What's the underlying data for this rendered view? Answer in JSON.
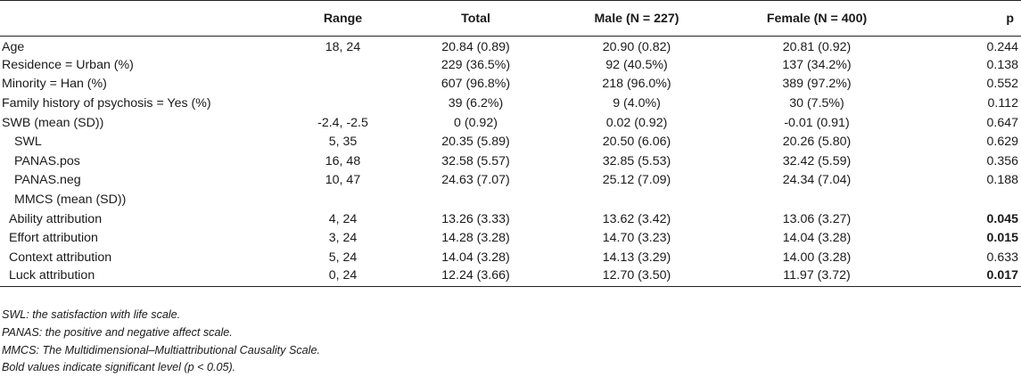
{
  "header": {
    "label": "",
    "range": "Range",
    "total": "Total",
    "male": "Male (N = 227)",
    "female": "Female (N = 400)",
    "p": "p"
  },
  "rows": [
    {
      "label": "Age",
      "range": "18, 24",
      "total": "20.84 (0.89)",
      "male": "20.90 (0.82)",
      "female": "20.81 (0.92)",
      "p": "0.244"
    },
    {
      "label": "Residence = Urban (%)",
      "range": "",
      "total": "229 (36.5%)",
      "male": "92 (40.5%)",
      "female": "137 (34.2%)",
      "p": "0.138"
    },
    {
      "label": "Minority = Han (%)",
      "range": "",
      "total": "607 (96.8%)",
      "male": "218 (96.0%)",
      "female": "389 (97.2%)",
      "p": "0.552"
    },
    {
      "label": "Family history of psychosis = Yes (%)",
      "range": "",
      "total": "39 (6.2%)",
      "male": "9 (4.0%)",
      "female": "30 (7.5%)",
      "p": "0.112"
    },
    {
      "label": "SWB (mean (SD))",
      "range": "-2.4, -2.5",
      "total": "0 (0.92)",
      "male": "0.02 (0.92)",
      "female": "-0.01 (0.91)",
      "p": "0.647"
    },
    {
      "label": "SWL",
      "range": "5, 35",
      "total": "20.35 (5.89)",
      "male": "20.50 (6.06)",
      "female": "20.26 (5.80)",
      "p": "0.629"
    },
    {
      "label": "PANAS.pos",
      "range": "16, 48",
      "total": "32.58 (5.57)",
      "male": "32.85 (5.53)",
      "female": "32.42 (5.59)",
      "p": "0.356"
    },
    {
      "label": "PANAS.neg",
      "range": "10, 47",
      "total": "24.63 (7.07)",
      "male": "25.12 (7.09)",
      "female": "24.34 (7.04)",
      "p": "0.188"
    },
    {
      "label": "MMCS (mean (SD))",
      "range": "",
      "total": "",
      "male": "",
      "female": "",
      "p": ""
    },
    {
      "label": "Ability attribution",
      "range": "4, 24",
      "total": "13.26 (3.33)",
      "male": "13.62 (3.42)",
      "female": "13.06 (3.27)",
      "p": "0.045"
    },
    {
      "label": "Effort attribution",
      "range": "3, 24",
      "total": "14.28 (3.28)",
      "male": "14.70 (3.23)",
      "female": "14.04 (3.28)",
      "p": "0.015"
    },
    {
      "label": "Context attribution",
      "range": "5, 24",
      "total": "14.04 (3.28)",
      "male": "14.13 (3.29)",
      "female": "14.00 (3.28)",
      "p": "0.633"
    },
    {
      "label": "Luck attribution",
      "range": "0, 24",
      "total": "12.24 (3.66)",
      "male": "12.70 (3.50)",
      "female": "11.97 (3.72)",
      "p": "0.017"
    }
  ],
  "notes": [
    "SWL: the satisfaction with life scale.",
    "PANAS: the positive and negative affect scale.",
    "MMCS: The Multidimensional–Multiattributional Causality Scale.",
    "Bold values indicate significant level (p < 0.05)."
  ]
}
